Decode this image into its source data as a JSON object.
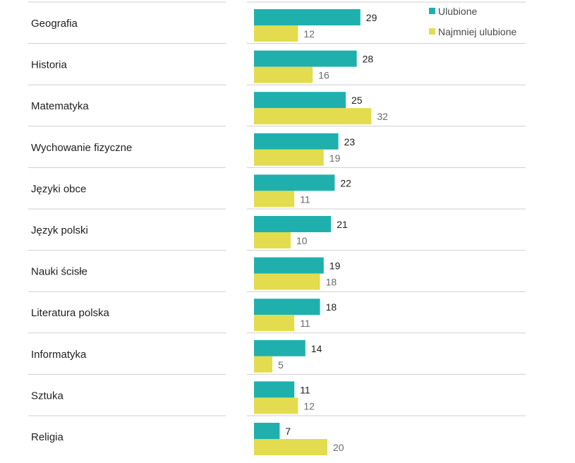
{
  "colors": {
    "favorite": "#1fb0ad",
    "least": "#e3dc4f",
    "row_divider": "#cfcfcf"
  },
  "legend": {
    "favorite_label": "Ulubione",
    "least_label": "Najmniej ulubione"
  },
  "chart_data": {
    "type": "bar",
    "orientation": "horizontal",
    "categories": [
      "Geografia",
      "Historia",
      "Matematyka",
      "Wychowanie fizyczne",
      "Języki obce",
      "Język polski",
      "Nauki ścisłe",
      "Literatura polska",
      "Informatyka",
      "Sztuka",
      "Religia"
    ],
    "series": [
      {
        "name": "Ulubione",
        "values": [
          29,
          28,
          25,
          23,
          22,
          21,
          19,
          18,
          14,
          11,
          7
        ]
      },
      {
        "name": "Najmniej ulubione",
        "values": [
          12,
          16,
          32,
          19,
          11,
          10,
          18,
          11,
          5,
          12,
          20
        ]
      }
    ],
    "xlim": [
      0,
      32
    ],
    "data_labels": true,
    "legend_position": "top-right",
    "title": "",
    "xlabel": "",
    "ylabel": ""
  }
}
